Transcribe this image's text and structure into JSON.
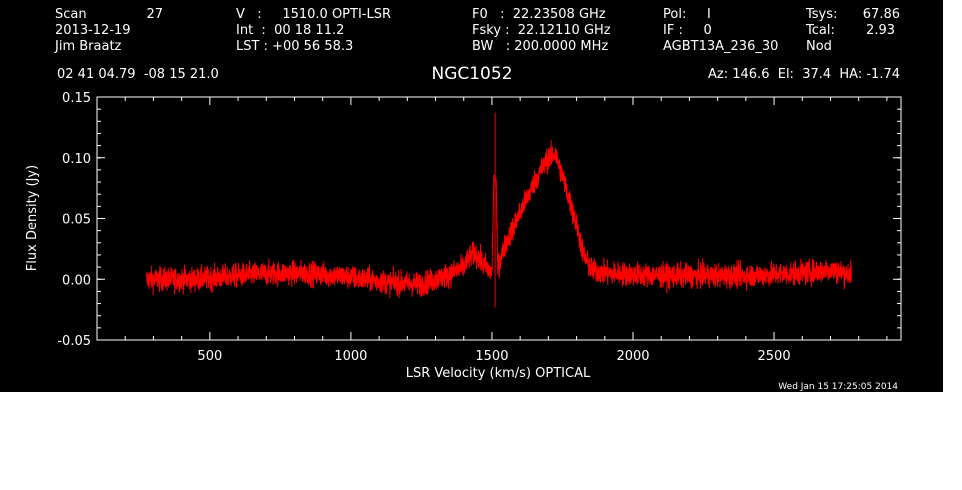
{
  "header": {
    "scan_label": "Scan",
    "scan_value": "27",
    "date": "2013-12-19",
    "observer": "Jim Braatz",
    "v_line": "V   :     1510.0 OPTI-LSR",
    "int_line": "Int  :  00 18 11.2",
    "lst_line": "LST : +00 56 58.3",
    "f0_line": "F0   :  22.23508 GHz",
    "fsky_line": "Fsky :  22.12110 GHz",
    "bw_line": "BW   : 200.0000 MHz",
    "pol_line": "Pol:     I",
    "if_line": "IF :     0",
    "project": "AGBT13A_236_30",
    "tsys_label": "Tsys:",
    "tsys_value": "67.86",
    "tcal_label": "Tcal:",
    "tcal_value": "2.93",
    "mode": "Nod",
    "coords": "02 41 04.79  -08 15 21.0",
    "pointing": "Az: 146.6  El:  37.4  HA: -1.74",
    "timestamp": "Wed Jan 15 17:25:05 2014"
  },
  "colors": {
    "background": "#000000",
    "axes": "#ffffff",
    "trace": "#ff0000"
  },
  "chart_data": {
    "type": "line",
    "title": "NGC1052",
    "xlabel": "LSR Velocity (km/s) OPTICAL",
    "ylabel": "Flux Density (Jy)",
    "xlim": [
      100,
      2950
    ],
    "ylim": [
      -0.05,
      0.15
    ],
    "xticks": [
      500,
      1000,
      1500,
      2000,
      2500
    ],
    "yticks": [
      -0.05,
      0.0,
      0.05,
      0.1,
      0.15
    ],
    "ytick_labels": [
      "-0.05",
      "0.00",
      "0.05",
      "0.10",
      "0.15"
    ],
    "grid": false,
    "series": [
      {
        "x": [
          275,
          350,
          450,
          550,
          650,
          750,
          850,
          950,
          1050,
          1150,
          1250,
          1350,
          1400,
          1420,
          1440,
          1460,
          1480,
          1500,
          1511,
          1520,
          1550,
          1600,
          1650,
          1700,
          1725,
          1750,
          1800,
          1825,
          1850,
          1900,
          2000,
          2100,
          2200,
          2300,
          2400,
          2500,
          2600,
          2700,
          2750,
          2775
        ],
        "y": [
          0.0,
          0.0,
          0.0,
          0.002,
          0.004,
          0.005,
          0.005,
          0.003,
          0.0,
          -0.003,
          -0.004,
          0.004,
          0.01,
          0.018,
          0.022,
          0.015,
          0.01,
          0.005,
          0.137,
          0.01,
          0.03,
          0.055,
          0.08,
          0.1,
          0.103,
          0.085,
          0.045,
          0.02,
          0.008,
          0.005,
          0.004,
          0.003,
          0.003,
          0.003,
          0.003,
          0.004,
          0.005,
          0.008,
          0.005,
          0.005
        ]
      }
    ],
    "noise_rms": 0.007,
    "spike_at": 1511
  }
}
